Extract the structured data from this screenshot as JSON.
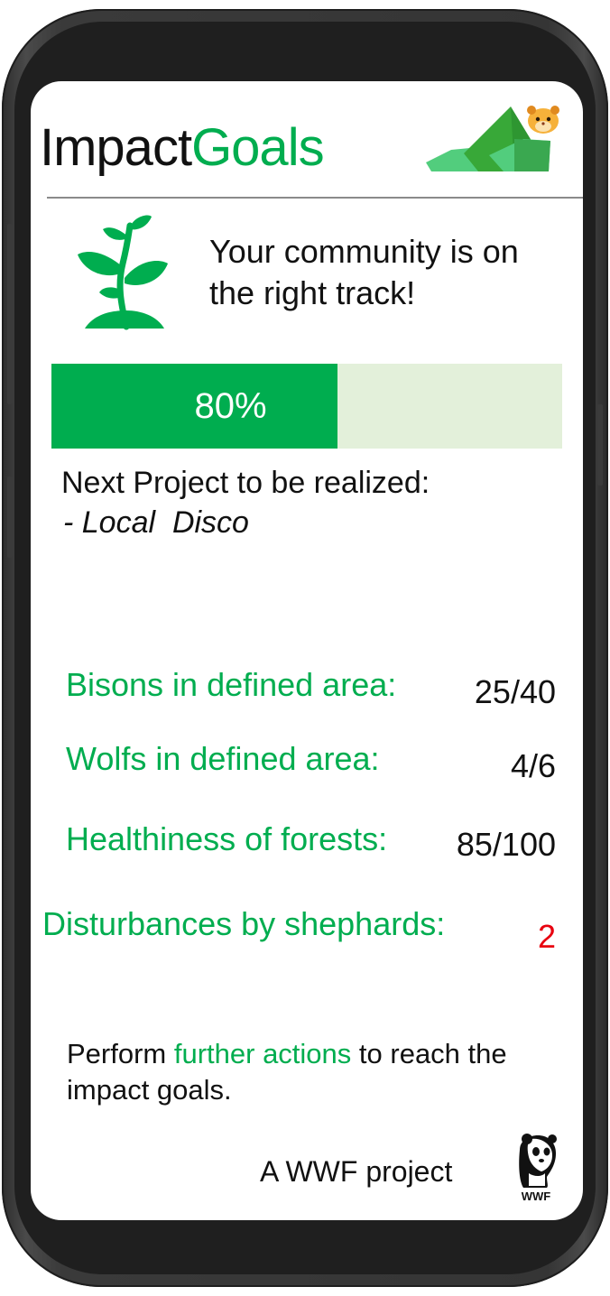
{
  "app": {
    "title_part1": "Impact",
    "title_part2": "Goals",
    "logo_icon": "hamster-mountain-logo-icon",
    "brand_color": "#00ad4f"
  },
  "status": {
    "icon": "plant-sprout-icon",
    "headline": "Your community is on the right track!"
  },
  "progress": {
    "value": 80,
    "label": "80%",
    "fill_color": "#00ad4f",
    "track_color": "#e3f0da"
  },
  "next_project": {
    "label": "Next Project to be realized:",
    "value": "- Local  Disco"
  },
  "stats": [
    {
      "label": "Bisons in defined area:",
      "value": "25/40"
    },
    {
      "label": "Wolfs in defined area:",
      "value": "4/6"
    },
    {
      "label": "Healthiness of forests:",
      "value": "85/100"
    },
    {
      "label": "Disturbances by shephards:",
      "value": "2",
      "value_color": "#e8000f"
    }
  ],
  "call_to_action": {
    "prefix": "Perform ",
    "highlight": "further actions",
    "suffix": " to reach the impact goals."
  },
  "footer": {
    "text": "A WWF project",
    "logo_label": "WWF",
    "logo_icon": "wwf-panda-logo-icon"
  }
}
